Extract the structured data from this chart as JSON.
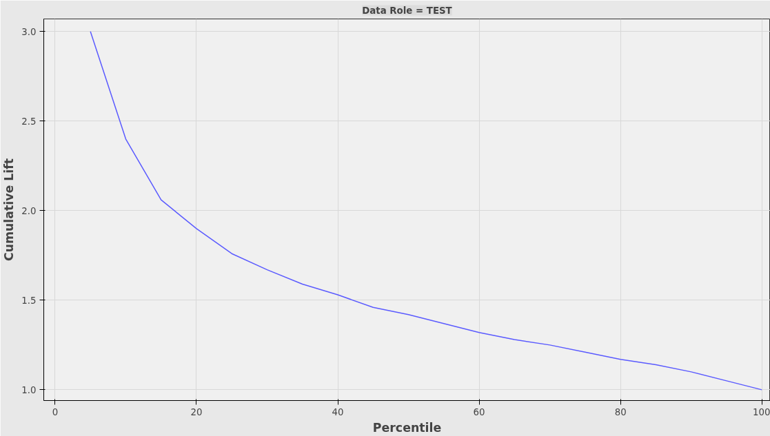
{
  "chart_data": {
    "type": "line",
    "title": "Data Role = TEST",
    "xlabel": "Percentile",
    "ylabel": "Cumulative Lift",
    "x": [
      5,
      10,
      15,
      20,
      25,
      30,
      35,
      40,
      45,
      50,
      55,
      60,
      65,
      70,
      75,
      80,
      85,
      90,
      95,
      100
    ],
    "series": [
      {
        "color": "#5a5aff",
        "values": [
          3.0,
          2.4,
          2.06,
          1.9,
          1.76,
          1.67,
          1.59,
          1.53,
          1.46,
          1.42,
          1.37,
          1.32,
          1.28,
          1.25,
          1.21,
          1.17,
          1.14,
          1.1,
          1.05,
          1.0
        ]
      }
    ],
    "xlim": [
      -1.6,
      101.2
    ],
    "ylim": [
      0.94,
      3.07
    ],
    "xticks": [
      0,
      20,
      40,
      60,
      80,
      100
    ],
    "yticks": [
      {
        "value": 1,
        "label": "1.0"
      },
      {
        "value": 1.5,
        "label": "1.5"
      },
      {
        "value": 2,
        "label": "2.0"
      },
      {
        "value": 2.5,
        "label": "2.5"
      },
      {
        "value": 3,
        "label": "3.0"
      }
    ],
    "grid": true,
    "marker": "none",
    "line_style": "solid"
  }
}
